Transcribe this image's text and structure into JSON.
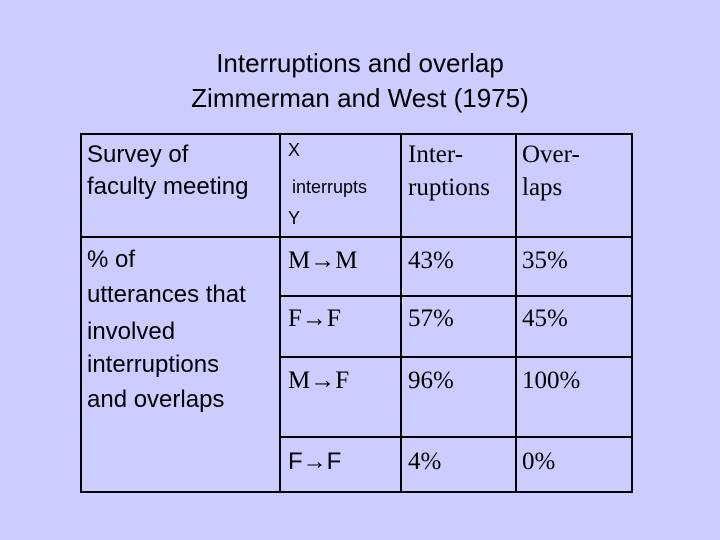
{
  "title": [
    "Interruptions and overlap",
    "Zimmerman and West (1975)"
  ],
  "table": {
    "header": [
      [
        "Survey of",
        "faculty meeting"
      ],
      [
        "X",
        "interrupts",
        "Y"
      ],
      [
        "Inter-",
        "ruptions"
      ],
      [
        "Over-",
        "laps"
      ]
    ],
    "row_label": [
      "% of",
      "utterances that",
      "involved",
      "interruptions",
      "and overlaps"
    ],
    "rows": [
      [
        "M→M",
        "43%",
        "35%"
      ],
      [
        "F→F",
        "57%",
        "45%"
      ],
      [
        "M→F",
        "96%",
        "100%"
      ],
      [
        "F→F",
        "4%",
        "0%"
      ]
    ]
  }
}
